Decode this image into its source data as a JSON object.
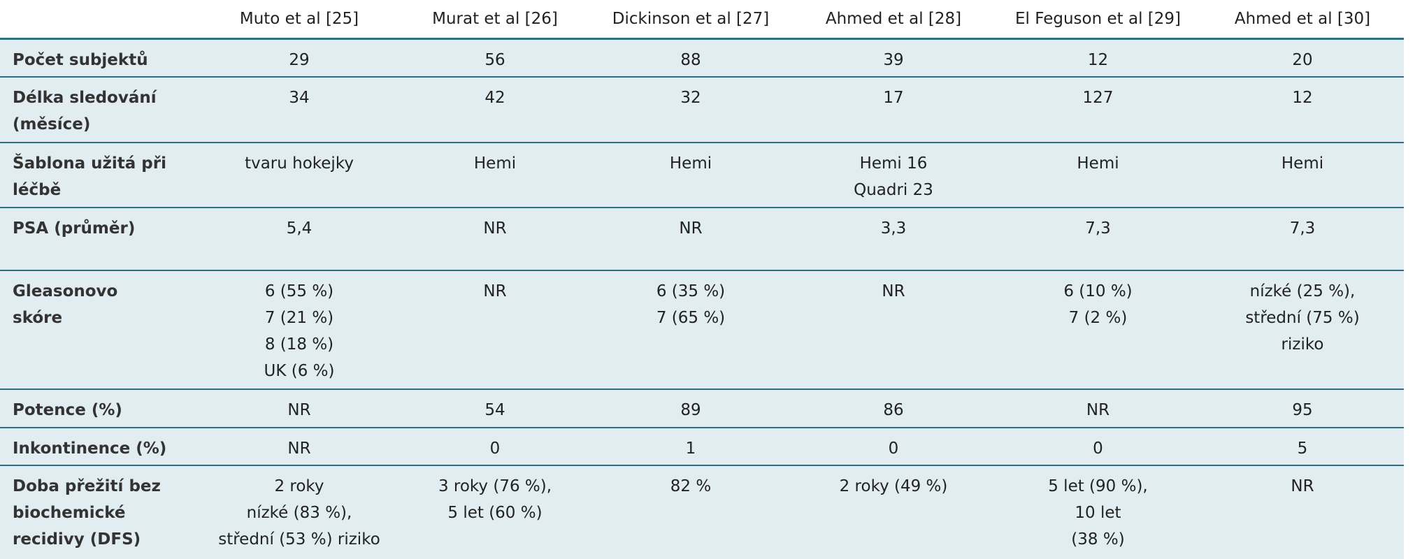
{
  "header": {
    "columns": [
      "Muto et al [25]",
      "Murat et al [26]",
      "Dickinson et al [27]",
      "Ahmed et al [28]",
      "El Feguson et al [29]",
      "Ahmed et al [30]"
    ]
  },
  "table": {
    "rows": [
      {
        "label": [
          "Počet subjektů"
        ],
        "cells": [
          [
            "29"
          ],
          [
            "56"
          ],
          [
            "88"
          ],
          [
            "39"
          ],
          [
            "12"
          ],
          [
            "20"
          ]
        ]
      },
      {
        "label": [
          "Délka sledování",
          "(měsíce)"
        ],
        "cells": [
          [
            "34"
          ],
          [
            "42"
          ],
          [
            "32"
          ],
          [
            "17"
          ],
          [
            "127"
          ],
          [
            "12"
          ]
        ]
      },
      {
        "label": [
          "Šablona užitá při",
          "léčbě"
        ],
        "cells": [
          [
            "tvaru hokejky"
          ],
          [
            "Hemi"
          ],
          [
            "Hemi"
          ],
          [
            "Hemi 16",
            "Quadri 23"
          ],
          [
            "Hemi"
          ],
          [
            "Hemi"
          ]
        ]
      },
      {
        "label": [
          "PSA (průměr)"
        ],
        "cells": [
          [
            "5,4"
          ],
          [
            "NR"
          ],
          [
            "NR"
          ],
          [
            "3,3"
          ],
          [
            "7,3"
          ],
          [
            "7,3"
          ]
        ]
      },
      {
        "label": [
          "Gleasonovo",
          "skóre"
        ],
        "cells": [
          [
            "6 (55 %)",
            "7 (21 %)",
            "8 (18 %)",
            "UK (6 %)"
          ],
          [
            "NR"
          ],
          [
            "6 (35 %)",
            "7 (65 %)"
          ],
          [
            "NR"
          ],
          [
            "6 (10 %)",
            "7 (2 %)"
          ],
          [
            "nízké (25 %),",
            "střední (75 %)",
            "riziko"
          ]
        ]
      },
      {
        "label": [
          "Potence (%)"
        ],
        "cells": [
          [
            "NR"
          ],
          [
            "54"
          ],
          [
            "89"
          ],
          [
            "86"
          ],
          [
            "NR"
          ],
          [
            "95"
          ]
        ]
      },
      {
        "label": [
          "Inkontinence (%)"
        ],
        "cells": [
          [
            "NR"
          ],
          [
            "0"
          ],
          [
            "1"
          ],
          [
            "0"
          ],
          [
            "0"
          ],
          [
            "5"
          ]
        ]
      },
      {
        "label": [
          "Doba přežití bez",
          "biochemické",
          "recidivy (DFS)"
        ],
        "cells": [
          [
            "2 roky",
            "nízké (83 %),",
            "střední (53 %) riziko"
          ],
          [
            "3 roky (76 %),",
            "5 let (60 %)"
          ],
          [
            "82 %"
          ],
          [
            "2 roky (49 %)"
          ],
          [
            "5 let (90 %),",
            "10 let",
            "(38 %)"
          ],
          [
            "NR"
          ]
        ]
      }
    ]
  }
}
